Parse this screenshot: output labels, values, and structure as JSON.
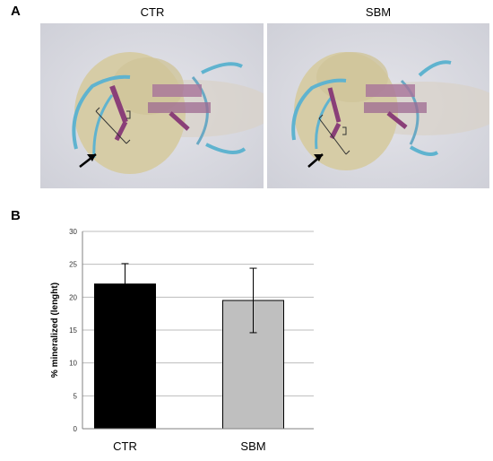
{
  "panel_a": {
    "label": "A",
    "images": [
      {
        "title": "CTR"
      },
      {
        "title": "SBM"
      }
    ]
  },
  "panel_b": {
    "label": "B"
  },
  "chart_data": {
    "type": "bar",
    "title": "",
    "xlabel": "",
    "ylabel": "% mineralized (lenght)",
    "categories": [
      "CTR",
      "SBM"
    ],
    "series": [
      {
        "values": [
          22.0,
          19.5
        ],
        "error": [
          3.1,
          4.9
        ],
        "colors": [
          "#000000",
          "#bfbfbf"
        ]
      }
    ],
    "ylim": [
      0,
      30
    ],
    "yticks": [
      0,
      5,
      10,
      15,
      20,
      25,
      30
    ],
    "grid": true,
    "legend": "none"
  }
}
